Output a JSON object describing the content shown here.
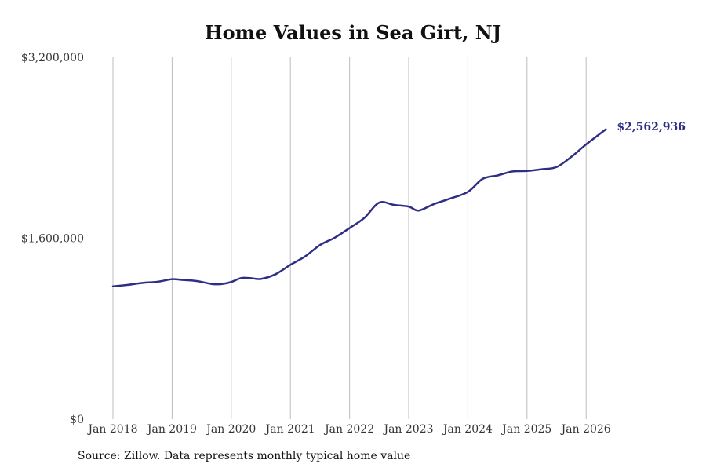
{
  "chart_data": {
    "type": "line",
    "title": "Home Values in Sea Girt, NJ",
    "xlabel": "",
    "ylabel": "",
    "ylim": [
      0,
      3200000
    ],
    "y_ticks": [
      {
        "value": 0,
        "label": "$0"
      },
      {
        "value": 1600000,
        "label": "$1,600,000"
      },
      {
        "value": 3200000,
        "label": "$3,200,000"
      }
    ],
    "x_ticks": [
      {
        "date": "2018-01",
        "label": "Jan 2018"
      },
      {
        "date": "2019-01",
        "label": "Jan 2019"
      },
      {
        "date": "2020-01",
        "label": "Jan 2020"
      },
      {
        "date": "2021-01",
        "label": "Jan 2021"
      },
      {
        "date": "2022-01",
        "label": "Jan 2022"
      },
      {
        "date": "2023-01",
        "label": "Jan 2023"
      },
      {
        "date": "2024-01",
        "label": "Jan 2024"
      },
      {
        "date": "2025-01",
        "label": "Jan 2025"
      },
      {
        "date": "2026-01",
        "label": "Jan 2026"
      }
    ],
    "grid": {
      "vertical": true,
      "horizontal": false
    },
    "line_color": "#2e2e85",
    "series": [
      {
        "points": [
          {
            "x": "2018-01",
            "y": 1175000
          },
          {
            "x": "2018-04",
            "y": 1188000
          },
          {
            "x": "2018-07",
            "y": 1205000
          },
          {
            "x": "2018-10",
            "y": 1215000
          },
          {
            "x": "2019-01",
            "y": 1238000
          },
          {
            "x": "2019-03",
            "y": 1232000
          },
          {
            "x": "2019-06",
            "y": 1222000
          },
          {
            "x": "2019-09",
            "y": 1196000
          },
          {
            "x": "2019-11",
            "y": 1195000
          },
          {
            "x": "2020-01",
            "y": 1213000
          },
          {
            "x": "2020-03",
            "y": 1248000
          },
          {
            "x": "2020-05",
            "y": 1247000
          },
          {
            "x": "2020-07",
            "y": 1240000
          },
          {
            "x": "2020-10",
            "y": 1282000
          },
          {
            "x": "2021-01",
            "y": 1365000
          },
          {
            "x": "2021-04",
            "y": 1440000
          },
          {
            "x": "2021-07",
            "y": 1540000
          },
          {
            "x": "2021-10",
            "y": 1605000
          },
          {
            "x": "2022-01",
            "y": 1690000
          },
          {
            "x": "2022-04",
            "y": 1780000
          },
          {
            "x": "2022-07",
            "y": 1915000
          },
          {
            "x": "2022-10",
            "y": 1895000
          },
          {
            "x": "2023-01",
            "y": 1880000
          },
          {
            "x": "2023-03",
            "y": 1845000
          },
          {
            "x": "2023-06",
            "y": 1900000
          },
          {
            "x": "2023-09",
            "y": 1945000
          },
          {
            "x": "2024-01",
            "y": 2010000
          },
          {
            "x": "2024-04",
            "y": 2125000
          },
          {
            "x": "2024-07",
            "y": 2155000
          },
          {
            "x": "2024-10",
            "y": 2190000
          },
          {
            "x": "2025-01",
            "y": 2195000
          },
          {
            "x": "2025-04",
            "y": 2210000
          },
          {
            "x": "2025-07",
            "y": 2230000
          },
          {
            "x": "2025-10",
            "y": 2320000
          },
          {
            "x": "2026-01",
            "y": 2430000
          },
          {
            "x": "2026-05",
            "y": 2562936
          }
        ]
      }
    ],
    "annotations": [
      {
        "text": "$2,562,936",
        "x": "2026-05",
        "y": 2562936
      }
    ]
  },
  "source_note": "Source: Zillow. Data represents monthly typical home value"
}
